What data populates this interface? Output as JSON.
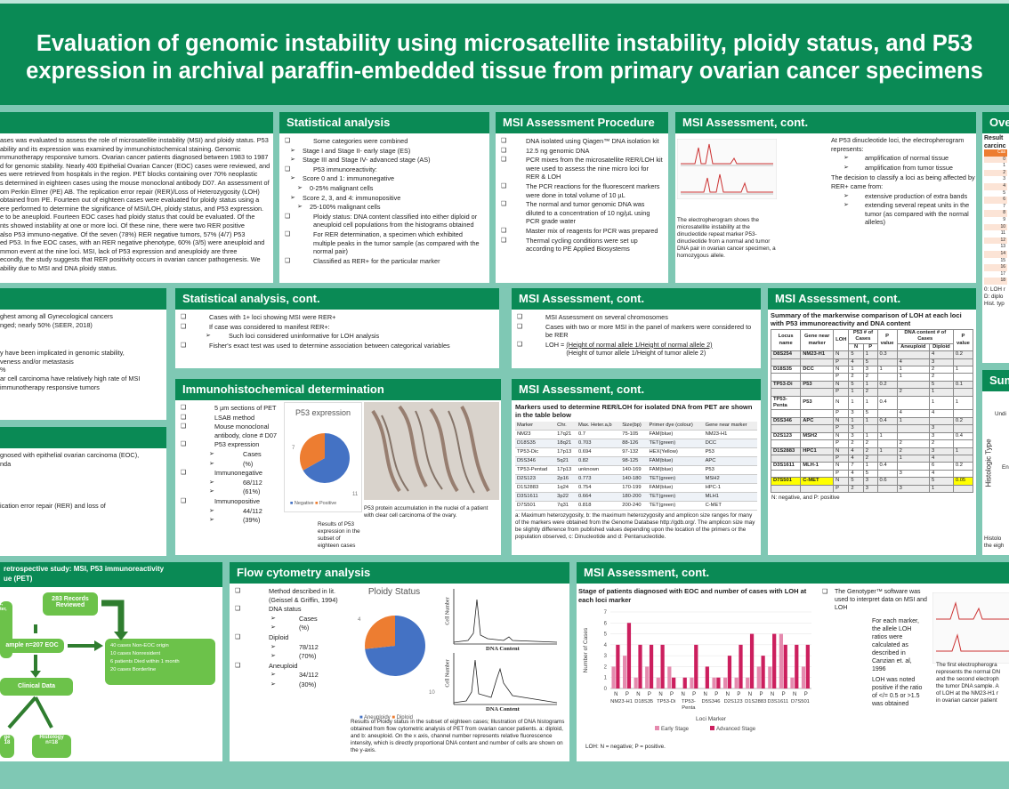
{
  "title_line1": "Evaluation of genomic instability using microsatellite instability, ploidy status, and P53",
  "title_line2": "expression in archival paraffin-embedded tissue from primary ovarian cancer specimens",
  "abstract": {
    "lines": [
      "ases was evaluated to assess the role of microsatellite instability (MSI) and ploidy status. P53",
      "ability and its expression was examined by immunohistochemical staining. Genomic",
      "mmunotherapy responsive tumors. Ovarian cancer patients diagnosed between 1983 to 1987",
      "d for genomic stability. Nearly 400 Epithelial Ovarian Cancer (EOC) cases were reviewed, and",
      "es were retrieved from hospitals in the region. PET blocks containing over 70% neoplastic",
      "s determined in eighteen cases using the mouse monoclonal antibody D07. An assessment of",
      "om Perkin Elmer (PE) AB. The replication error repair (RER)/Loss of Heterozygosity (LOH)",
      "obtained from PE. Fourteen out of eighteen cases were evaluated for ploidy status using a",
      "ere performed to determine the significance of MSI/LOH, ploidy status, and P53 expression.",
      "e to be aneuploid. Fourteen EOC cases had ploidy status that could be evaluated. Of the",
      "nts showed instability at one or more loci. Of these nine, there were two RER positive",
      "also P53 immuno-negative. Of the seven (78%) RER negative tumors, 57% (4/7) P53",
      "ed P53. In five EOC cases, with an RER negative phenotype, 60% (3/5) were aneuploid and",
      "mmon event at the nine loci. MSI, lack of P53 expression and aneuploidy are three",
      "econdly, the study suggests that RER positivity occurs in ovarian cancer pathogenesis. We",
      "ability due to MSI and DNA ploidy status."
    ]
  },
  "stat": {
    "title": "Statistical analysis",
    "items": [
      "Some categories were combined",
      "Stage I and Stage II- early stage (ES)",
      "Stage III and Stage IV- advanced stage (AS)",
      "P53 immunoreactivity:",
      "Score 0 and 1: immunonegative",
      "0-25% malignant cells",
      "Score 2, 3, and 4: immunopositive",
      "25-100% malignant cells",
      "Ploidy status: DNA content classified into either diploid or aneuploid cell populations from the histograms obtained",
      "For RER determination, a specimen which exhibited multiple peaks in the tumor sample (as compared with the normal pair)",
      "Classified as RER+ for the particular marker"
    ]
  },
  "proc": {
    "title": "MSI Assessment Procedure",
    "items": [
      "DNA isolated using Qiagen™ DNA isolation kit",
      "12.5 ng genomic DNA",
      "PCR mixes from the microsatellite RER/LOH kit were used to assess the nine micro loci for RER & LOH",
      "The PCR reactions for the fluorescent markers were done in total volume of 10 µL",
      "The normal and tumor genomic DNA was diluted to a concentration of 10 ng/µL using PCR grade water",
      "Master mix of reagents for PCR was prepared",
      "Thermal cycling conditions were set up according to PE Applied Biosystems"
    ]
  },
  "msi1": {
    "title": "MSI Assessment, cont.",
    "caption": "The electropherogram shows the microsatellite instability at the dinucleotide repeat marker P53-dinucleotide from a normal and tumor DNA pair in ovarian cancer specimen, a homozygous allele.",
    "intro": "At P53 dinucleotide loci, the electropherogram represents:",
    "b1": "amplification of normal tissue",
    "b2": "amplification from tumor tissue",
    "decision": "The decision to classify a loci as being affected by RER+ came from:",
    "b3": "extensive production of extra bands",
    "b4": "extending several repeat units in the tumor (as compared with the normal alleles)"
  },
  "over": {
    "title": "Over",
    "result": "Result",
    "sub": "carcinc",
    "rows": [
      "Cas",
      "0",
      "1",
      "2",
      "3",
      "4",
      "5",
      "6",
      "7",
      "8",
      "9",
      "10",
      "11",
      "12",
      "13",
      "14",
      "15",
      "16",
      "17",
      "18"
    ],
    "f1": "0: LOH r",
    "f2": "D: diplo",
    "f3": "Hist. typ"
  },
  "intro": {
    "l1": "ghest among all Gynecological cancers",
    "l2": "nged; nearly 50% (SEER, 2018)",
    "l3": "y have been implicated in genomic stability,",
    "l4": "veness and/or metastasis",
    "l5": "%",
    "l6": "ar cell carcinoma have relatively high rate of MSI",
    "l7": "immunotherapy responsive tumors"
  },
  "obj": {
    "l1": "gnosed with epithelial ovarian carcinoma (EOC),",
    "l2": "nda",
    "l3": "ication error repair (RER) and loss of"
  },
  "stat2": {
    "title": "Statistical analysis, cont.",
    "i1": "Cases with 1+ loci showing MSI were RER+",
    "i2": "If case was considered to manifest RER+:",
    "i3": "Such loci considered uninformative for LOH analysis",
    "i4": "Fisher's exact test was used to determine association between categorical variables"
  },
  "msi2": {
    "title": "MSI Assessment, cont.",
    "i1": "MSI Assessment on several chromosomes",
    "i2": "Cases with two or more MSI in the panel of markers were considered to be RER",
    "loh": "LOH =",
    "num": "(Height of normal allele 1/Height of normal allele 2)",
    "den": "(Height of tumor allele 1/Height of tumor allele 2)"
  },
  "msi3": {
    "title": "MSI Assessment, cont.",
    "heading": "Summary of the markerwise comparison of LOH at each loci with P53 immunoreactivity and DNA content",
    "footer": "N: negative, and P: positive",
    "h1": "Locus name",
    "h2": "Gene near marker",
    "h3": "LOH",
    "h4": "P53 # of Cases",
    "h5": "P value",
    "h6": "DNA content # of Cases",
    "h7": "P value",
    "hn": "N",
    "hp": "P",
    "ha": "Aneuploid",
    "hd": "Diploid",
    "rows": [
      [
        "D8S254",
        "NM23-H1",
        "N",
        "5",
        "1",
        "0.3",
        "",
        "4",
        "0.2"
      ],
      [
        "",
        "",
        "P",
        "4",
        "5",
        "",
        "4",
        "3",
        ""
      ],
      [
        "D18S35",
        "DCC",
        "N",
        "1",
        "3",
        "1",
        "1",
        "2",
        "1"
      ],
      [
        "",
        "",
        "P",
        "2",
        "2",
        "",
        "1",
        "2",
        ""
      ],
      [
        "TP53-Di",
        "P53",
        "N",
        "5",
        "1",
        "0.2",
        "",
        "5",
        "0.1"
      ],
      [
        "",
        "",
        "P",
        "1",
        "2",
        "",
        "2",
        "1",
        ""
      ],
      [
        "TP53-Penta",
        "P53",
        "N",
        "1",
        "1",
        "0.4",
        "",
        "1",
        "1"
      ],
      [
        "",
        "",
        "P",
        "3",
        "5",
        "",
        "4",
        "4",
        ""
      ],
      [
        "D5S346",
        "APC",
        "N",
        "1",
        "1",
        "0.4",
        "1",
        "",
        "0.2"
      ],
      [
        "",
        "",
        "P",
        "3",
        "",
        "",
        "",
        "3",
        ""
      ],
      [
        "D2S123",
        "MSH2",
        "N",
        "3",
        "1",
        "1",
        "",
        "3",
        "0.4"
      ],
      [
        "",
        "",
        "P",
        "2",
        "2",
        "",
        "2",
        "2",
        ""
      ],
      [
        "D1S2883",
        "HPC1",
        "N",
        "4",
        "2",
        "1",
        "2",
        "3",
        "1"
      ],
      [
        "",
        "",
        "P",
        "4",
        "2",
        "",
        "1",
        "4",
        ""
      ],
      [
        "D3S1611",
        "MLH-1",
        "N",
        "7",
        "1",
        "0.4",
        "",
        "6",
        "0.2"
      ],
      [
        "",
        "",
        "P",
        "4",
        "5",
        "",
        "3",
        "4",
        ""
      ],
      [
        "D7S501",
        "C-MET",
        "N",
        "5",
        "3",
        "0.6",
        "",
        "5",
        "0.05"
      ],
      [
        "",
        "",
        "P",
        "2",
        "3",
        "",
        "3",
        "1",
        ""
      ]
    ]
  },
  "summ": {
    "title": "Sum",
    "ylabel": "Histologic Type",
    "t1": "Undi",
    "t2": "En",
    "f1": "Histolo",
    "f2": "the eigh"
  },
  "ihc": {
    "title": "Immunohistochemical determination",
    "i1": "5 µm sections of PET",
    "i2": "LSAB method",
    "i3": "Mouse monoclonal antibody, clone # D07",
    "i4": "P53 expression",
    "i5": "Cases",
    "i6": "(%)",
    "i7": "Immunonegative",
    "i8": "68/112",
    "i9": "(61%)",
    "i10": "Immunopositive",
    "i11": "44/112",
    "i12": "(39%)",
    "chart_title": "P53 expression",
    "lab7": "7",
    "lab11": "11",
    "leg_neg": "Negative",
    "leg_pos": "Positive",
    "res": "Results of P53 expression in the subset of eighteen cases",
    "photo_cap": "P53 protein accumulation in the nuclei of a patient with clear cell carcinoma of the ovary."
  },
  "msi4": {
    "title": "MSI Assessment, cont.",
    "heading": "Markers used to determine RER/LOH for isolated DNA from PET are shown in the table below",
    "h": [
      "Marker",
      "Chr.",
      "Max. Heter.a,b",
      "Size(bp)",
      "Primer dye (colour)",
      "Gene near marker"
    ],
    "rows": [
      [
        "NM23",
        "17q21",
        "0.7",
        "75-105",
        "FAM(blue)",
        "NM23-H1"
      ],
      [
        "D18S35",
        "18q21",
        "0.703",
        "88-126",
        "TET(green)",
        "DCC"
      ],
      [
        "TP53-Dic",
        "17p13",
        "0.694",
        "97-132",
        "HEX(Yellow)",
        "P53"
      ],
      [
        "D5S346",
        "5q21",
        "0.82",
        "98-125",
        "FAM(blue)",
        "APC"
      ],
      [
        "TP53-Pentad",
        "17p13",
        "unknown",
        "140-169",
        "FAM(blue)",
        "P53"
      ],
      [
        "D2S123",
        "2p16",
        "0.773",
        "140-180",
        "TET(green)",
        "MSH2"
      ],
      [
        "D1S2883",
        "1q24",
        "0.754",
        "170-199",
        "FAM(blue)",
        "HPC-1"
      ],
      [
        "D3S1611",
        "3p22",
        "0.664",
        "180-200",
        "TET(green)",
        "MLH1"
      ],
      [
        "D7S501",
        "7q31",
        "0.818",
        "200-240",
        "TET(green)",
        "C-MET"
      ]
    ],
    "note": "a: Maximum heterozygosity, b: the maximum heterozygosity and amplicon size ranges for many of the markers were obtained from the Genome Database http://gdb.org/. The amplicon size may be slightly difference from published values depending upon the location of the primers or the population observed, c: Dinucleotide and d: Pentanucleotide."
  },
  "design": {
    "title": "retrospective study: MSI, P53 immunoreactivity",
    "title2": "ue (PET)",
    "b1": "283 Records Reviewed",
    "b2": "ample n=207 EOC",
    "b3": "40 cases Non-EOC origin\n10 cases Nonresident\n6 patients Died within 1 month\n20 cases Borderline",
    "b4": "Clinical Data",
    "b5": "ge\n18",
    "b6": "Histology\nn=18",
    "b7": "t,\nter,"
  },
  "flow": {
    "title": "Flow cytometry analysis",
    "i1": "Method described in lit. (Geissel & Griffin, 1994)",
    "i2": "DNA status",
    "i3": "Cases",
    "i4": "(%)",
    "i5": "Diploid",
    "i6": "78/112",
    "i7": "(70%)",
    "i8": "Aneuploid",
    "i9": "34/112",
    "i10": "(30%)",
    "chart_title": "Ploidy Status",
    "lab4": "4",
    "lab10": "10",
    "leg_an": "Aneuploidy",
    "leg_di": "Diploid",
    "hist_y": "Cell Number",
    "hist_x": "DNA Content",
    "caption": "Results of Ploidy status in the subset of eighteen cases; Illustration of DNA histograms obtained from flow cytometric analysis of PET from ovarian cancer patients. a: diploid, and b: aneuploid. On the x axis, channel number represents relative fluorescence intensity, which is directly proportional DNA content and number of cells are shown on the y-axis."
  },
  "msi5": {
    "title": "MSI Assessment, cont.",
    "chart_heading": "Stage of patients diagnosed with EOC and number of cases with LOH at each loci marker",
    "footer": "LOH: N = negative; P = positive.",
    "s1": "The Genotyper™ software was used to interpret data on MSI and LOH",
    "s2": "For each marker, the allele LOH ratios were calculated as described in Canzian et. al, 1996",
    "s3": "LOH was noted positive if the ratio of </= 0.5 or >1.5 was obtained",
    "r1": "The first electropherogra",
    "r2": "represents the normal DN",
    "r3": "and the second electroph",
    "r4": "the tumor DNA sample. A",
    "r5": "of LOH at the NM23-H1 r",
    "r6": "in ovarian cancer patient"
  },
  "chart_data": {
    "type": "bar",
    "ylabel": "Number of Cases",
    "xlabel": "Loci Marker",
    "ylim": [
      0,
      7
    ],
    "yticks": [
      0,
      1,
      2,
      3,
      4,
      5,
      6,
      7
    ],
    "categories": [
      "NM23-H1",
      "D18S35",
      "TP53-Di",
      "TP53-Penta",
      "D5S346",
      "D2S123",
      "D1S2883",
      "D3S1611",
      "D7S501"
    ],
    "sub": [
      "N",
      "P"
    ],
    "series": [
      {
        "name": "Early Stage",
        "color": "#e58aae",
        "values": [
          [
            2,
            3
          ],
          [
            1,
            2
          ],
          [
            1,
            2
          ],
          [
            0,
            1
          ],
          [
            0,
            1
          ],
          [
            1,
            1
          ],
          [
            1,
            2
          ],
          [
            2,
            5
          ],
          [
            1,
            2
          ]
        ]
      },
      {
        "name": "Advanced Stage",
        "color": "#cc1f5e",
        "values": [
          [
            4,
            6
          ],
          [
            4,
            4
          ],
          [
            4,
            1
          ],
          [
            1,
            4
          ],
          [
            2,
            1
          ],
          [
            3,
            4
          ],
          [
            5,
            3
          ],
          [
            5,
            4
          ],
          [
            4,
            4
          ]
        ]
      }
    ]
  }
}
